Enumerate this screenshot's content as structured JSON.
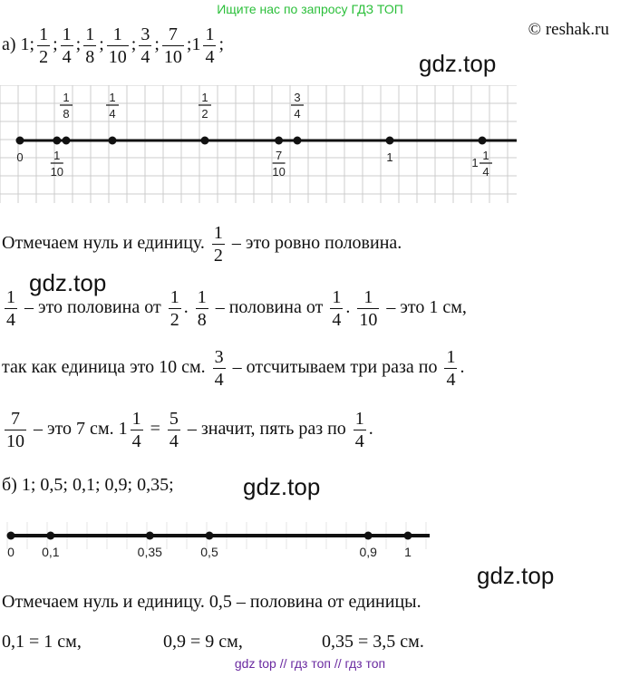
{
  "banner_top": "Ищите нас по запросу ГДЗ ТОП",
  "copyright": "© reshak.ru",
  "watermark": "gdz.top",
  "part_a": {
    "label": "а)",
    "seq": [
      "1",
      "1/2",
      "1/4",
      "1/8",
      "1/10",
      "3/4",
      "7/10",
      "1 1/4"
    ]
  },
  "numberline_a": {
    "ticks": [
      {
        "value": 0,
        "label": "0"
      },
      {
        "value": 0.1,
        "label": "1/10"
      },
      {
        "value": 0.125,
        "label": "1/8"
      },
      {
        "value": 0.25,
        "label": "1/4"
      },
      {
        "value": 0.5,
        "label": "1/2"
      },
      {
        "value": 0.7,
        "label": "7/10"
      },
      {
        "value": 0.75,
        "label": "3/4"
      },
      {
        "value": 1,
        "label": "1"
      },
      {
        "value": 1.25,
        "label": "1 1/4"
      }
    ]
  },
  "text_a": {
    "l1_before": "Отмечаем нуль и единицу.",
    "l1_frac": "1/2",
    "l1_after": "– это ровно половина.",
    "l2_f1": "1/4",
    "l2_t1": "– это половина от",
    "l2_f2": "1/2",
    "l2_f3": "1/8",
    "l2_t2": "– половина от",
    "l2_f4": "1/4",
    "l2_f5": "1/10",
    "l2_t3": "– это 1 см,",
    "l3_t1": "так как единица это 10 см.",
    "l3_f1": "3/4",
    "l3_t2": "– отсчитываем три раза по",
    "l3_f2": "1/4",
    "l4_f1": "7/10",
    "l4_t1": "– это 7 см.",
    "l4_whole": "1",
    "l4_f2": "1/4",
    "l4_eq": "=",
    "l4_f3": "5/4",
    "l4_t2": "– значит, пять раз по",
    "l4_f4": "1/4"
  },
  "part_b": {
    "label": "б)",
    "seq": "1; 0,5; 0,1; 0,9; 0,35;"
  },
  "numberline_b": {
    "ticks": [
      {
        "value": 0,
        "label": "0"
      },
      {
        "value": 0.1,
        "label": "0,1"
      },
      {
        "value": 0.35,
        "label": "0,35"
      },
      {
        "value": 0.5,
        "label": "0,5"
      },
      {
        "value": 0.9,
        "label": "0,9"
      },
      {
        "value": 1,
        "label": "1"
      }
    ]
  },
  "text_b": {
    "line1": "Отмечаем нуль и единицу. 0,5 – половина от единицы.",
    "eq1": "0,1 = 1 см,",
    "eq2": "0,9 = 9 см,",
    "eq3": "0,35 = 3,5 см."
  },
  "banner_bottom": "gdz top // гдз топ // гдз топ"
}
